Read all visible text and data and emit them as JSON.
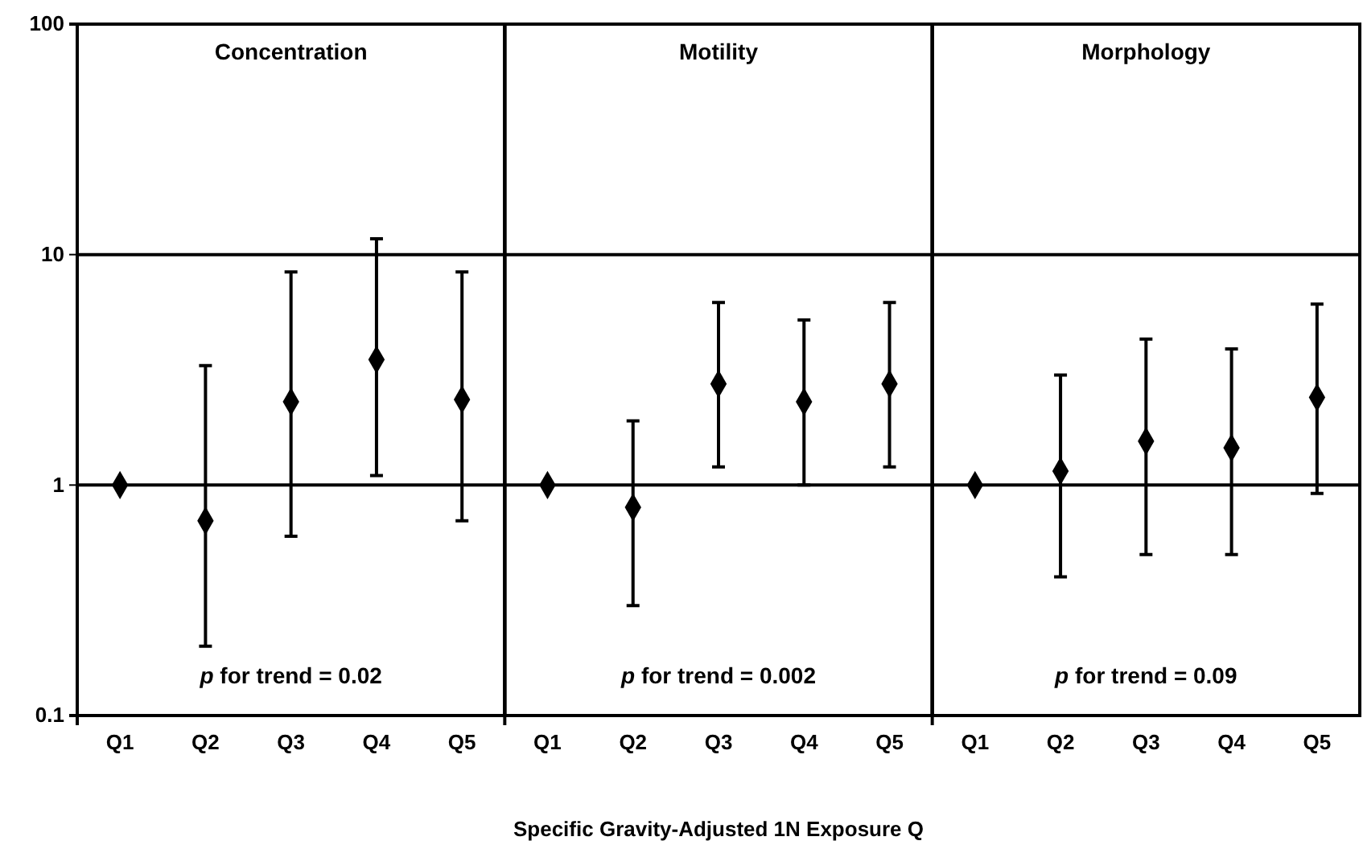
{
  "chart_data": [
    {
      "type": "scatter",
      "title": "Concentration",
      "categories": [
        "Q1",
        "Q2",
        "Q3",
        "Q4",
        "Q5"
      ],
      "log": "y",
      "ylim": [
        0.1,
        100
      ],
      "yticks": [
        0.1,
        1,
        10,
        100
      ],
      "grid": "y",
      "marker": "diamond",
      "series": [
        {
          "color": "#000000",
          "values": [
            1,
            0.7,
            2.3,
            3.5,
            2.35
          ],
          "errors": [
            null,
            [
              0.2,
              3.3
            ],
            [
              0.6,
              8.4
            ],
            [
              1.1,
              11.7
            ],
            [
              0.7,
              8.4
            ]
          ]
        }
      ],
      "annotations": [
        "p for trend = 0.02"
      ]
    },
    {
      "type": "scatter",
      "title": "Motility",
      "categories": [
        "Q1",
        "Q2",
        "Q3",
        "Q4",
        "Q5"
      ],
      "log": "y",
      "ylim": [
        0.1,
        100
      ],
      "yticks": [
        0.1,
        1,
        10,
        100
      ],
      "grid": "y",
      "marker": "diamond",
      "tick_labels": "x",
      "xlabel": "Specific Gravity-Adjusted 1N Exposure Q",
      "series": [
        {
          "color": "#000000",
          "values": [
            1,
            0.8,
            2.75,
            2.3,
            2.75
          ],
          "errors": [
            null,
            [
              0.3,
              1.9
            ],
            [
              1.2,
              6.2
            ],
            [
              1.0,
              5.2
            ],
            [
              1.2,
              6.2
            ]
          ]
        }
      ],
      "annotations": [
        "p for trend = 0.002"
      ]
    },
    {
      "type": "scatter",
      "title": "Morphology",
      "categories": [
        "Q1",
        "Q2",
        "Q3",
        "Q4",
        "Q5"
      ],
      "log": "y",
      "ylim": [
        0.1,
        100
      ],
      "yticks": [
        0.1,
        1,
        10,
        100
      ],
      "grid": "y",
      "marker": "diamond",
      "tick_labels": "x",
      "series": [
        {
          "color": "#000000",
          "values": [
            1,
            1.15,
            1.55,
            1.45,
            2.4
          ],
          "errors": [
            null,
            [
              0.4,
              3.0
            ],
            [
              0.5,
              4.3
            ],
            [
              0.5,
              3.9
            ],
            [
              0.92,
              6.1
            ]
          ]
        }
      ],
      "annotations": [
        "p for trend = 0.09"
      ]
    }
  ]
}
